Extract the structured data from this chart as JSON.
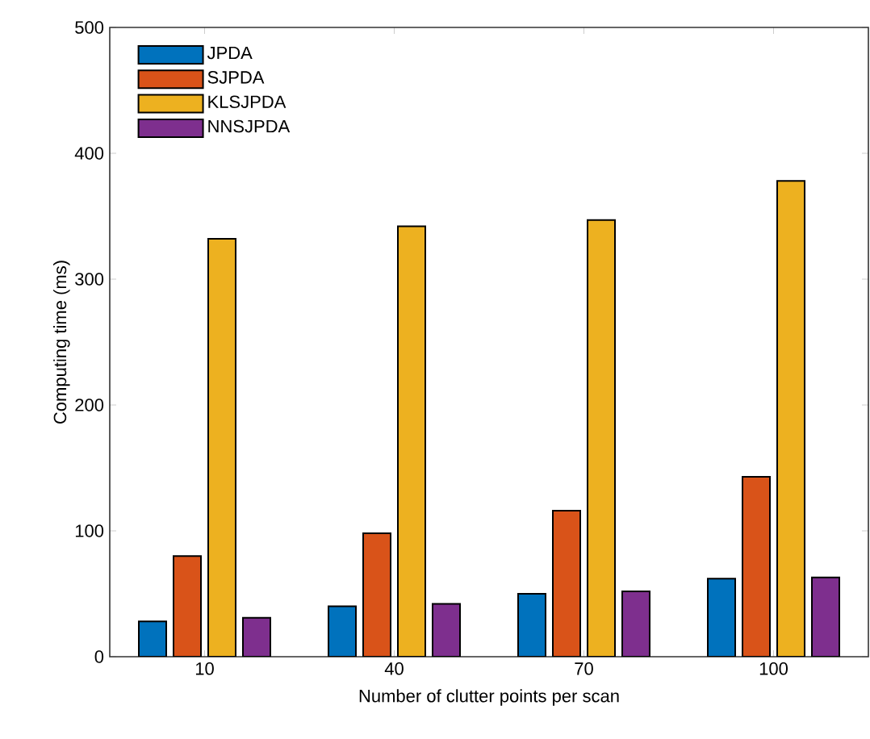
{
  "chart_data": {
    "type": "bar",
    "xlabel": "Number of clutter points per scan",
    "ylabel": "Computing time (ms)",
    "categories": [
      "10",
      "40",
      "70",
      "100"
    ],
    "series": [
      {
        "name": "JPDA",
        "color": "#0072bd",
        "values": [
          28,
          40,
          50,
          62
        ]
      },
      {
        "name": "SJPDA",
        "color": "#d95319",
        "values": [
          80,
          98,
          116,
          143
        ]
      },
      {
        "name": "KLSJPDA",
        "color": "#edb120",
        "values": [
          332,
          342,
          347,
          378
        ]
      },
      {
        "name": "NNSJPDA",
        "color": "#7e2f8e",
        "values": [
          31,
          42,
          52,
          63
        ]
      }
    ],
    "ylim": [
      0,
      500
    ],
    "yticks": [
      0,
      100,
      200,
      300,
      400,
      500
    ],
    "legend": "top left"
  }
}
